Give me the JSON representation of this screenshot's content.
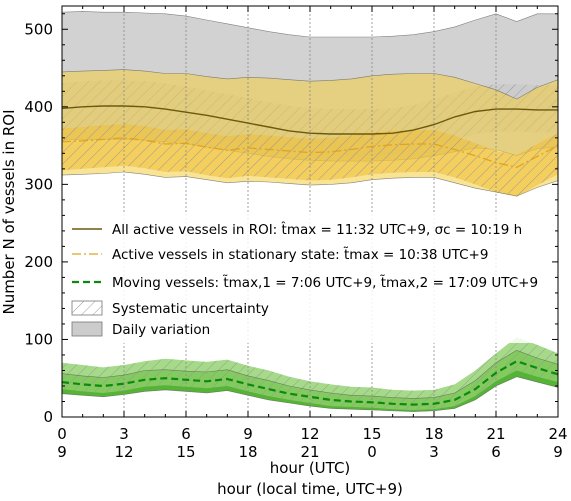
{
  "chart_data": {
    "type": "line",
    "xlabel": "hour (UTC)",
    "xlabel2": "hour (local time, UTC+9)",
    "ylabel": "Number N of vessels in ROI",
    "xlim": [
      0,
      24
    ],
    "ylim": [
      0,
      530
    ],
    "x_ticks": [
      0,
      3,
      6,
      9,
      12,
      15,
      18,
      21,
      24
    ],
    "x_ticks_local": [
      "9",
      "12",
      "15",
      "18",
      "21",
      "0",
      "3",
      "6",
      "9"
    ],
    "y_ticks": [
      0,
      100,
      200,
      300,
      400,
      500
    ],
    "vertical_gridlines": [
      3,
      6,
      9,
      12,
      15,
      18,
      21
    ],
    "x": [
      0,
      1,
      2,
      3,
      4,
      5,
      6,
      7,
      8,
      9,
      10,
      11,
      12,
      13,
      14,
      15,
      16,
      17,
      18,
      19,
      20,
      21,
      22,
      23,
      24
    ],
    "series": [
      {
        "name": "All active vessels in ROI: t̂max = 11:32 UTC+9, σc = 10:19 h",
        "color": "#6b5a0e",
        "style": "solid",
        "values": [
          398,
          400,
          401,
          401,
          400,
          397,
          393,
          389,
          384,
          379,
          374,
          369,
          366,
          365,
          365,
          365,
          366,
          370,
          377,
          387,
          394,
          397,
          397,
          396,
          396
        ],
        "sys_band": [
          [
            370,
            430
          ],
          [
            372,
            433
          ],
          [
            373,
            434
          ],
          [
            373,
            434
          ],
          [
            372,
            433
          ],
          [
            369,
            430
          ],
          [
            365,
            426
          ],
          [
            361,
            421
          ],
          [
            356,
            416
          ],
          [
            351,
            411
          ],
          [
            346,
            406
          ],
          [
            341,
            401
          ],
          [
            338,
            398
          ],
          [
            337,
            397
          ],
          [
            337,
            397
          ],
          [
            337,
            397
          ],
          [
            338,
            398
          ],
          [
            342,
            402
          ],
          [
            349,
            409
          ],
          [
            358,
            418
          ],
          [
            365,
            426
          ],
          [
            368,
            429
          ],
          [
            368,
            429
          ],
          [
            367,
            428
          ],
          [
            367,
            428
          ]
        ],
        "daily_band": [
          [
            358,
            522
          ],
          [
            358,
            523
          ],
          [
            358,
            522
          ],
          [
            358,
            522
          ],
          [
            357,
            521
          ],
          [
            355,
            520
          ],
          [
            352,
            517
          ],
          [
            348,
            512
          ],
          [
            344,
            507
          ],
          [
            340,
            502
          ],
          [
            336,
            497
          ],
          [
            333,
            493
          ],
          [
            331,
            490
          ],
          [
            330,
            490
          ],
          [
            330,
            490
          ],
          [
            330,
            490
          ],
          [
            331,
            491
          ],
          [
            333,
            493
          ],
          [
            337,
            497
          ],
          [
            342,
            503
          ],
          [
            347,
            512
          ],
          [
            345,
            520
          ],
          [
            337,
            510
          ],
          [
            346,
            520
          ],
          [
            348,
            520
          ]
        ]
      },
      {
        "name": "Active vessels in stationary state: t̃max = 10:38 UTC+9",
        "color": "#e0a31e",
        "style": "dashdot",
        "values": [
          355,
          356,
          358,
          360,
          357,
          352,
          353,
          348,
          344,
          347,
          345,
          343,
          341,
          342,
          345,
          349,
          351,
          352,
          352,
          345,
          337,
          328,
          322,
          336,
          350
        ],
        "sys_band": [
          [
            318,
            372
          ],
          [
            320,
            374
          ],
          [
            322,
            376
          ],
          [
            324,
            378
          ],
          [
            321,
            375
          ],
          [
            316,
            370
          ],
          [
            317,
            371
          ],
          [
            312,
            366
          ],
          [
            308,
            362
          ],
          [
            311,
            365
          ],
          [
            309,
            363
          ],
          [
            307,
            361
          ],
          [
            305,
            359
          ],
          [
            306,
            360
          ],
          [
            309,
            363
          ],
          [
            313,
            367
          ],
          [
            315,
            369
          ],
          [
            316,
            370
          ],
          [
            316,
            370
          ],
          [
            309,
            363
          ],
          [
            300,
            353
          ],
          [
            290,
            343
          ],
          [
            284,
            338
          ],
          [
            299,
            352
          ],
          [
            313,
            366
          ]
        ],
        "daily_band": [
          [
            312,
            445
          ],
          [
            313,
            446
          ],
          [
            314,
            447
          ],
          [
            316,
            448
          ],
          [
            313,
            446
          ],
          [
            309,
            443
          ],
          [
            310,
            443
          ],
          [
            306,
            439
          ],
          [
            302,
            436
          ],
          [
            304,
            438
          ],
          [
            303,
            437
          ],
          [
            301,
            435
          ],
          [
            299,
            433
          ],
          [
            300,
            434
          ],
          [
            302,
            436
          ],
          [
            306,
            440
          ],
          [
            308,
            442
          ],
          [
            309,
            443
          ],
          [
            309,
            443
          ],
          [
            302,
            438
          ],
          [
            295,
            430
          ],
          [
            290,
            422
          ],
          [
            285,
            410
          ],
          [
            296,
            425
          ],
          [
            305,
            435
          ]
        ]
      },
      {
        "name": "Moving vessels: t̃max,1 = 7:06 UTC+9, t̃max,2 = 17:09 UTC+9",
        "color": "#0d8a0d",
        "style": "dashed",
        "values": [
          45,
          42,
          40,
          43,
          48,
          50,
          48,
          46,
          49,
          42,
          36,
          30,
          26,
          22,
          20,
          19,
          17,
          16,
          17,
          22,
          36,
          57,
          72,
          63,
          55
        ],
        "sys_band": [
          [
            36,
            70
          ],
          [
            33,
            67
          ],
          [
            31,
            64
          ],
          [
            34,
            67
          ],
          [
            39,
            72
          ],
          [
            41,
            75
          ],
          [
            39,
            73
          ],
          [
            37,
            71
          ],
          [
            40,
            74
          ],
          [
            33,
            66
          ],
          [
            27,
            60
          ],
          [
            22,
            52
          ],
          [
            18,
            46
          ],
          [
            14,
            42
          ],
          [
            13,
            39
          ],
          [
            12,
            38
          ],
          [
            10,
            35
          ],
          [
            9,
            34
          ],
          [
            10,
            35
          ],
          [
            14,
            42
          ],
          [
            27,
            60
          ],
          [
            46,
            82
          ],
          [
            60,
            103
          ],
          [
            52,
            93
          ],
          [
            45,
            82
          ]
        ],
        "daily_band": [
          [
            30,
            56
          ],
          [
            28,
            53
          ],
          [
            26,
            51
          ],
          [
            29,
            54
          ],
          [
            33,
            60
          ],
          [
            35,
            61
          ],
          [
            33,
            59
          ],
          [
            31,
            58
          ],
          [
            34,
            61
          ],
          [
            28,
            53
          ],
          [
            22,
            47
          ],
          [
            18,
            40
          ],
          [
            14,
            35
          ],
          [
            11,
            31
          ],
          [
            10,
            28
          ],
          [
            9,
            27
          ],
          [
            8,
            25
          ],
          [
            7,
            24
          ],
          [
            8,
            25
          ],
          [
            11,
            31
          ],
          [
            22,
            47
          ],
          [
            40,
            70
          ],
          [
            52,
            86
          ],
          [
            45,
            76
          ],
          [
            38,
            68
          ]
        ]
      }
    ],
    "legend": [
      {
        "label": "All active vessels in ROI: t̂max = 11:32 UTC+9, σc = 10:19 h",
        "kind": "solid",
        "color": "#6b5a0e"
      },
      {
        "label": "Active vessels in stationary state: t̃max = 10:38 UTC+9",
        "kind": "dashdot",
        "color": "#e0a31e"
      },
      {
        "label": "Moving vessels: t̃max,1 = 7:06 UTC+9, t̃max,2 = 17:09 UTC+9",
        "kind": "dashed",
        "color": "#0d8a0d"
      },
      {
        "label": "Systematic uncertainty",
        "kind": "hatch",
        "color": "#ffffff"
      },
      {
        "label": "Daily variation",
        "kind": "fill",
        "color": "#cccccc"
      }
    ],
    "legend_placement": "center-left",
    "grid": "vertical dotted"
  }
}
